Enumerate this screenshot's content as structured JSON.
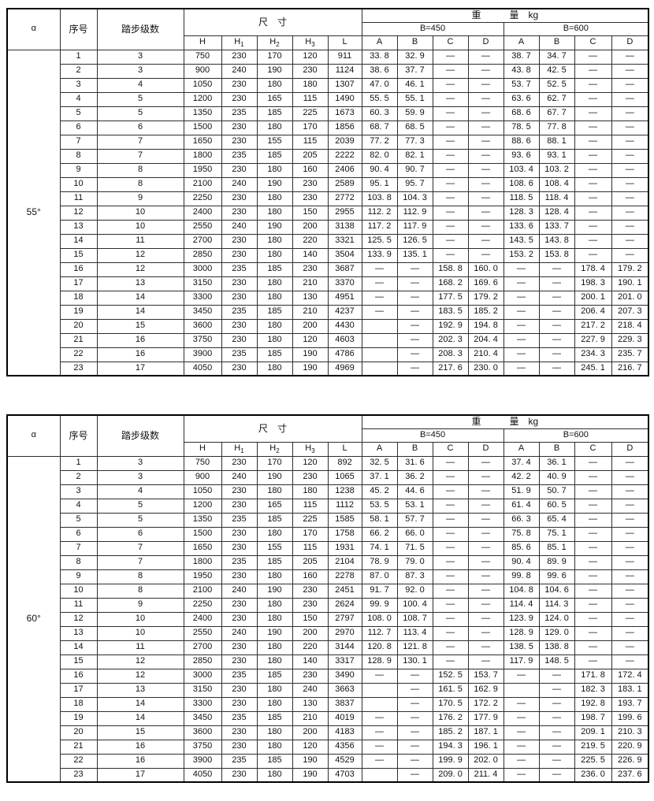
{
  "headers": {
    "alpha": "α",
    "serial": "序号",
    "steps": "踏步级数",
    "dims": "尺　寸",
    "weight": "重　　　量　kg",
    "b450": "B=450",
    "b600": "B=600",
    "dim_cols": [
      {
        "base": "H",
        "sub": ""
      },
      {
        "base": "H",
        "sub": "1"
      },
      {
        "base": "H",
        "sub": "2"
      },
      {
        "base": "H",
        "sub": "3"
      },
      {
        "base": "L",
        "sub": ""
      }
    ],
    "weight_cols": [
      "A",
      "B",
      "C",
      "D",
      "A",
      "B",
      "C",
      "D"
    ]
  },
  "tables": [
    {
      "alpha": "55°",
      "rows": [
        [
          "1",
          "3",
          "750",
          "230",
          "170",
          "120",
          "911",
          "33. 8",
          "32. 9",
          "—",
          "—",
          "38. 7",
          "34. 7",
          "—",
          "—"
        ],
        [
          "2",
          "3",
          "900",
          "240",
          "190",
          "230",
          "1124",
          "38. 6",
          "37. 7",
          "—",
          "—",
          "43. 8",
          "42. 5",
          "—",
          "—"
        ],
        [
          "3",
          "4",
          "1050",
          "230",
          "180",
          "180",
          "1307",
          "47. 0",
          "46. 1",
          "—",
          "—",
          "53. 7",
          "52. 5",
          "—",
          "—"
        ],
        [
          "4",
          "5",
          "1200",
          "230",
          "165",
          "115",
          "1490",
          "55. 5",
          "55. 1",
          "—",
          "—",
          "63. 6",
          "62. 7",
          "—",
          "—"
        ],
        [
          "5",
          "5",
          "1350",
          "235",
          "185",
          "225",
          "1673",
          "60. 3",
          "59. 9",
          "—",
          "—",
          "68. 6",
          "67. 7",
          "—",
          "—"
        ],
        [
          "6",
          "6",
          "1500",
          "230",
          "180",
          "170",
          "1856",
          "68. 7",
          "68. 5",
          "—",
          "—",
          "78. 5",
          "77. 8",
          "—",
          "—"
        ],
        [
          "7",
          "7",
          "1650",
          "230",
          "155",
          "115",
          "2039",
          "77. 2",
          "77. 3",
          "—",
          "—",
          "88. 6",
          "88. 1",
          "—",
          "—"
        ],
        [
          "8",
          "7",
          "1800",
          "235",
          "185",
          "205",
          "2222",
          "82. 0",
          "82. 1",
          "—",
          "—",
          "93. 6",
          "93. 1",
          "—",
          "—"
        ],
        [
          "9",
          "8",
          "1950",
          "230",
          "180",
          "160",
          "2406",
          "90. 4",
          "90. 7",
          "—",
          "—",
          "103. 4",
          "103. 2",
          "—",
          "—"
        ],
        [
          "10",
          "8",
          "2100",
          "240",
          "190",
          "230",
          "2589",
          "95. 1",
          "95. 7",
          "—",
          "—",
          "108. 6",
          "108. 4",
          "—",
          "—"
        ],
        [
          "11",
          "9",
          "2250",
          "230",
          "180",
          "230",
          "2772",
          "103. 8",
          "104. 3",
          "—",
          "—",
          "118. 5",
          "118. 4",
          "—",
          "—"
        ],
        [
          "12",
          "10",
          "2400",
          "230",
          "180",
          "150",
          "2955",
          "112. 2",
          "112. 9",
          "—",
          "—",
          "128. 3",
          "128. 4",
          "—",
          "—"
        ],
        [
          "13",
          "10",
          "2550",
          "240",
          "190",
          "200",
          "3138",
          "117. 2",
          "117. 9",
          "—",
          "—",
          "133. 6",
          "133. 7",
          "—",
          "—"
        ],
        [
          "14",
          "11",
          "2700",
          "230",
          "180",
          "220",
          "3321",
          "125. 5",
          "126. 5",
          "—",
          "—",
          "143. 5",
          "143. 8",
          "—",
          "—"
        ],
        [
          "15",
          "12",
          "2850",
          "230",
          "180",
          "140",
          "3504",
          "133. 9",
          "135. 1",
          "—",
          "—",
          "153. 2",
          "153. 8",
          "—",
          "—"
        ],
        [
          "16",
          "12",
          "3000",
          "235",
          "185",
          "230",
          "3687",
          "—",
          "—",
          "158. 8",
          "160. 0",
          "—",
          "—",
          "178. 4",
          "179. 2"
        ],
        [
          "17",
          "13",
          "3150",
          "230",
          "180",
          "210",
          "3370",
          "—",
          "—",
          "168. 2",
          "169. 6",
          "—",
          "—",
          "198. 3",
          "190. 1"
        ],
        [
          "18",
          "14",
          "3300",
          "230",
          "180",
          "130",
          "4951",
          "—",
          "—",
          "177. 5",
          "179. 2",
          "—",
          "—",
          "200. 1",
          "201. 0"
        ],
        [
          "19",
          "14",
          "3450",
          "235",
          "185",
          "210",
          "4237",
          "—",
          "—",
          "183. 5",
          "185. 2",
          "—",
          "—",
          "206. 4",
          "207. 3"
        ],
        [
          "20",
          "15",
          "3600",
          "230",
          "180",
          "200",
          "4430",
          "",
          "—",
          "192. 9",
          "194. 8",
          "—",
          "—",
          "217. 2",
          "218. 4"
        ],
        [
          "21",
          "16",
          "3750",
          "230",
          "180",
          "120",
          "4603",
          "",
          "—",
          "202. 3",
          "204. 4",
          "—",
          "—",
          "227. 9",
          "229. 3"
        ],
        [
          "22",
          "16",
          "3900",
          "235",
          "185",
          "190",
          "4786",
          "",
          "—",
          "208. 3",
          "210. 4",
          "—",
          "—",
          "234. 3",
          "235. 7"
        ],
        [
          "23",
          "17",
          "4050",
          "230",
          "180",
          "190",
          "4969",
          "",
          "—",
          "217. 6",
          "230. 0",
          "—",
          "—",
          "245. 1",
          "216. 7"
        ]
      ]
    },
    {
      "alpha": "60°",
      "rows": [
        [
          "1",
          "3",
          "750",
          "230",
          "170",
          "120",
          "892",
          "32. 5",
          "31. 6",
          "—",
          "—",
          "37. 4",
          "36. 1",
          "—",
          "—"
        ],
        [
          "2",
          "3",
          "900",
          "240",
          "190",
          "230",
          "1065",
          "37. 1",
          "36. 2",
          "—",
          "—",
          "42. 2",
          "40. 9",
          "—",
          "—"
        ],
        [
          "3",
          "4",
          "1050",
          "230",
          "180",
          "180",
          "1238",
          "45. 2",
          "44. 6",
          "—",
          "—",
          "51. 9",
          "50. 7",
          "—",
          "—"
        ],
        [
          "4",
          "5",
          "1200",
          "230",
          "165",
          "115",
          "1112",
          "53. 5",
          "53. 1",
          "—",
          "—",
          "61. 4",
          "60. 5",
          "—",
          "—"
        ],
        [
          "5",
          "5",
          "1350",
          "235",
          "185",
          "225",
          "1585",
          "58. 1",
          "57. 7",
          "—",
          "—",
          "66. 3",
          "65. 4",
          "—",
          "—"
        ],
        [
          "6",
          "6",
          "1500",
          "230",
          "180",
          "170",
          "1758",
          "66. 2",
          "66. 0",
          "—",
          "—",
          "75. 8",
          "75. 1",
          "—",
          "—"
        ],
        [
          "7",
          "7",
          "1650",
          "230",
          "155",
          "115",
          "1931",
          "74. 1",
          "71. 5",
          "—",
          "—",
          "85. 6",
          "85. 1",
          "—",
          "—"
        ],
        [
          "8",
          "7",
          "1800",
          "235",
          "185",
          "205",
          "2104",
          "78. 9",
          "79. 0",
          "—",
          "—",
          "90. 4",
          "89. 9",
          "—",
          "—"
        ],
        [
          "9",
          "8",
          "1950",
          "230",
          "180",
          "160",
          "2278",
          "87. 0",
          "87. 3",
          "—",
          "—",
          "99. 8",
          "99. 6",
          "—",
          "—"
        ],
        [
          "10",
          "8",
          "2100",
          "240",
          "190",
          "230",
          "2451",
          "91. 7",
          "92. 0",
          "—",
          "—",
          "104. 8",
          "104. 6",
          "—",
          "—"
        ],
        [
          "11",
          "9",
          "2250",
          "230",
          "180",
          "230",
          "2624",
          "99. 9",
          "100. 4",
          "—",
          "—",
          "114. 4",
          "114. 3",
          "—",
          "—"
        ],
        [
          "12",
          "10",
          "2400",
          "230",
          "180",
          "150",
          "2797",
          "108. 0",
          "108. 7",
          "—",
          "—",
          "123. 9",
          "124. 0",
          "—",
          "—"
        ],
        [
          "13",
          "10",
          "2550",
          "240",
          "190",
          "200",
          "2970",
          "112. 7",
          "113. 4",
          "—",
          "—",
          "128. 9",
          "129. 0",
          "—",
          "—"
        ],
        [
          "14",
          "11",
          "2700",
          "230",
          "180",
          "220",
          "3144",
          "120. 8",
          "121. 8",
          "—",
          "—",
          "138. 5",
          "138. 8",
          "—",
          "—"
        ],
        [
          "15",
          "12",
          "2850",
          "230",
          "180",
          "140",
          "3317",
          "128. 9",
          "130. 1",
          "—",
          "—",
          "117. 9",
          "148. 5",
          "—",
          "—"
        ],
        [
          "16",
          "12",
          "3000",
          "235",
          "185",
          "230",
          "3490",
          "—",
          "—",
          "152. 5",
          "153. 7",
          "—",
          "—",
          "171. 8",
          "172. 4"
        ],
        [
          "17",
          "13",
          "3150",
          "230",
          "180",
          "240",
          "3663",
          "",
          "—",
          "161. 5",
          "162. 9",
          "",
          "—",
          "182. 3",
          "183. 1"
        ],
        [
          "18",
          "14",
          "3300",
          "230",
          "180",
          "130",
          "3837",
          "",
          "—",
          "170. 5",
          "172. 2",
          "—",
          "—",
          "192. 8",
          "193. 7"
        ],
        [
          "19",
          "14",
          "3450",
          "235",
          "185",
          "210",
          "4019",
          "—",
          "—",
          "176. 2",
          "177. 9",
          "—",
          "—",
          "198. 7",
          "199. 6"
        ],
        [
          "20",
          "15",
          "3600",
          "230",
          "180",
          "200",
          "4183",
          "—",
          "—",
          "185. 2",
          "187. 1",
          "—",
          "—",
          "209. 1",
          "210. 3"
        ],
        [
          "21",
          "16",
          "3750",
          "230",
          "180",
          "120",
          "4356",
          "—",
          "—",
          "194. 3",
          "196. 1",
          "—",
          "—",
          "219. 5",
          "220. 9"
        ],
        [
          "22",
          "16",
          "3900",
          "235",
          "185",
          "190",
          "4529",
          "—",
          "—",
          "199. 9",
          "202. 0",
          "—",
          "—",
          "225. 5",
          "226. 9"
        ],
        [
          "23",
          "17",
          "4050",
          "230",
          "180",
          "190",
          "4703",
          "",
          "—",
          "209. 0",
          "211. 4",
          "—",
          "—",
          "236. 0",
          "237. 6"
        ]
      ]
    }
  ]
}
